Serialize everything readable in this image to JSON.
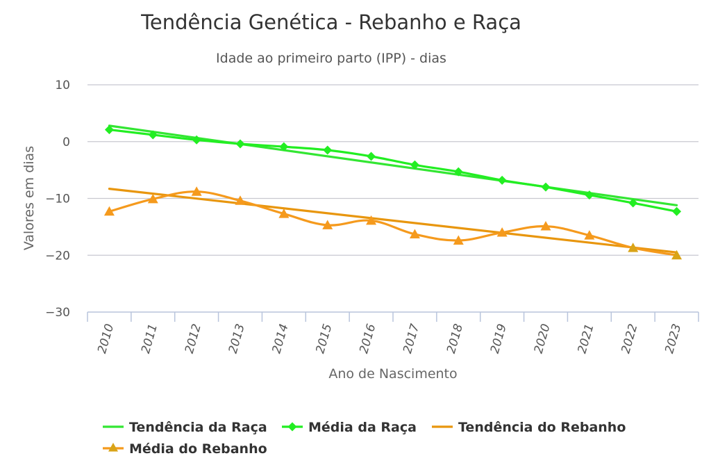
{
  "chart_data": {
    "type": "line",
    "title": "Tendência Genética - Rebanho e Raça",
    "subtitle": "Idade ao primeiro parto (IPP) - dias",
    "xlabel": "Ano de Nascimento",
    "ylabel": "Valores em dias",
    "ylim": [
      -30,
      10
    ],
    "yticks": [
      10,
      0,
      -10,
      -20,
      -30
    ],
    "ytick_labels": [
      "10",
      "0",
      "−10",
      "−20",
      "−30"
    ],
    "categories": [
      "2010",
      "2011",
      "2012",
      "2013",
      "2014",
      "2015",
      "2016",
      "2017",
      "2018",
      "2019",
      "2020",
      "2021",
      "2022",
      "2023"
    ],
    "series": [
      {
        "name": "Tendência da Raça",
        "style": "trend",
        "marker": "none",
        "color": "#33e633",
        "values": [
          2.8,
          1.8,
          0.8,
          -0.2,
          -1.2,
          -2.2,
          -3.2,
          -4.3,
          -5.3,
          -6.3,
          -7.3,
          -8.3,
          -9.3,
          -11.2
        ]
      },
      {
        "name": "Média da Raça",
        "style": "smooth",
        "marker": "diamond",
        "color": "#22ee22",
        "values": [
          2.1,
          1.2,
          0.3,
          -0.4,
          -0.9,
          -1.5,
          -2.6,
          -4.1,
          -5.3,
          -6.8,
          -8.0,
          -9.4,
          -10.8,
          -12.3
        ]
      },
      {
        "name": "Tendência do Rebanho",
        "style": "trend",
        "marker": "none",
        "color": "#e8960e",
        "values": [
          -8.3,
          -9.2,
          -9.9,
          -10.8,
          -11.6,
          -12.5,
          -13.4,
          -14.3,
          -15.2,
          -16.0,
          -16.9,
          -17.8,
          -18.7,
          -19.5
        ]
      },
      {
        "name": "Média do Rebanho",
        "style": "smooth",
        "marker": "triangle",
        "color": "#f59a1d",
        "marker_color": "#d9a417",
        "values": [
          -12.3,
          -10.1,
          -8.8,
          -10.4,
          -12.7,
          -14.7,
          -13.9,
          -16.3,
          -17.4,
          -16.0,
          -14.9,
          -16.5,
          -18.7,
          -20.0
        ]
      }
    ],
    "legend_position": "bottom-left"
  }
}
